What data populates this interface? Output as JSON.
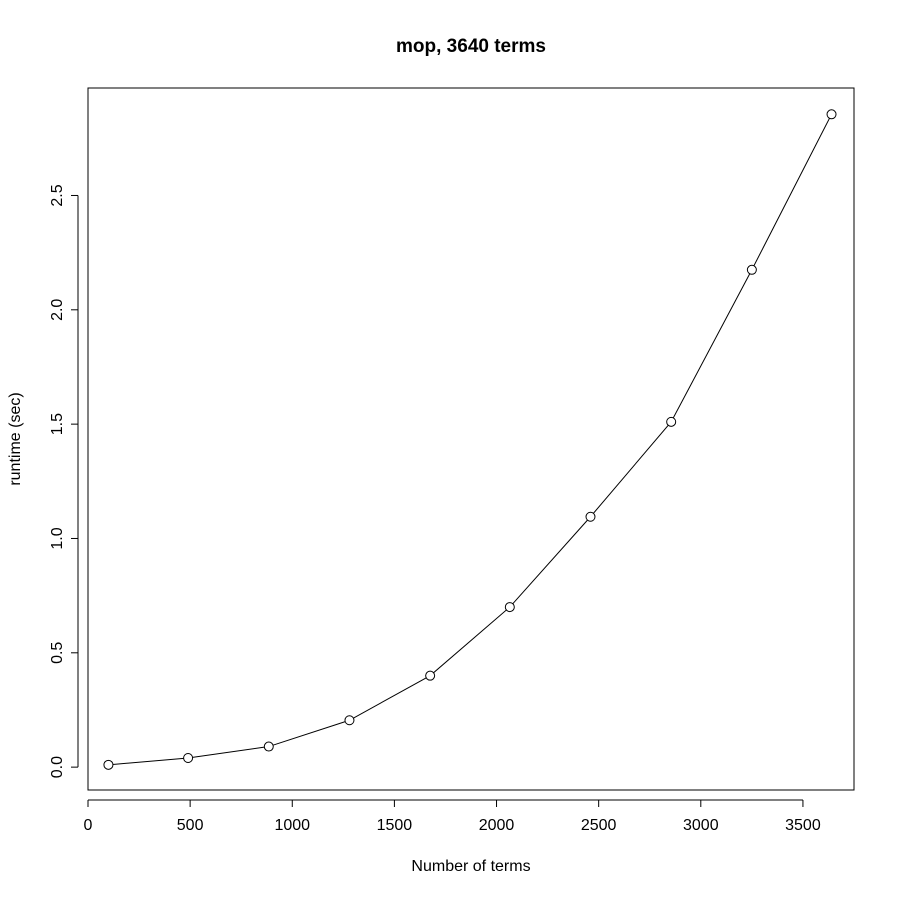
{
  "chart_data": {
    "type": "line",
    "title": "mop, 3640 terms",
    "xlabel": "Number of terms",
    "ylabel": "runtime (sec)",
    "xlim": [
      0,
      3750
    ],
    "ylim": [
      -0.1,
      2.97
    ],
    "x_ticks": [
      "0",
      "500",
      "1000",
      "1500",
      "2000",
      "2500",
      "3000",
      "3500"
    ],
    "y_ticks": [
      "0.0",
      "0.5",
      "1.0",
      "1.5",
      "2.0",
      "2.5"
    ],
    "grid": false,
    "legend": "none",
    "markers": "open-circle",
    "series": [
      {
        "x": [
          100,
          490,
          885,
          1280,
          1675,
          2065,
          2460,
          2855,
          3250,
          3640
        ],
        "y": [
          0.01,
          0.04,
          0.09,
          0.205,
          0.4,
          0.7,
          1.095,
          1.51,
          2.175,
          2.855
        ]
      }
    ]
  }
}
